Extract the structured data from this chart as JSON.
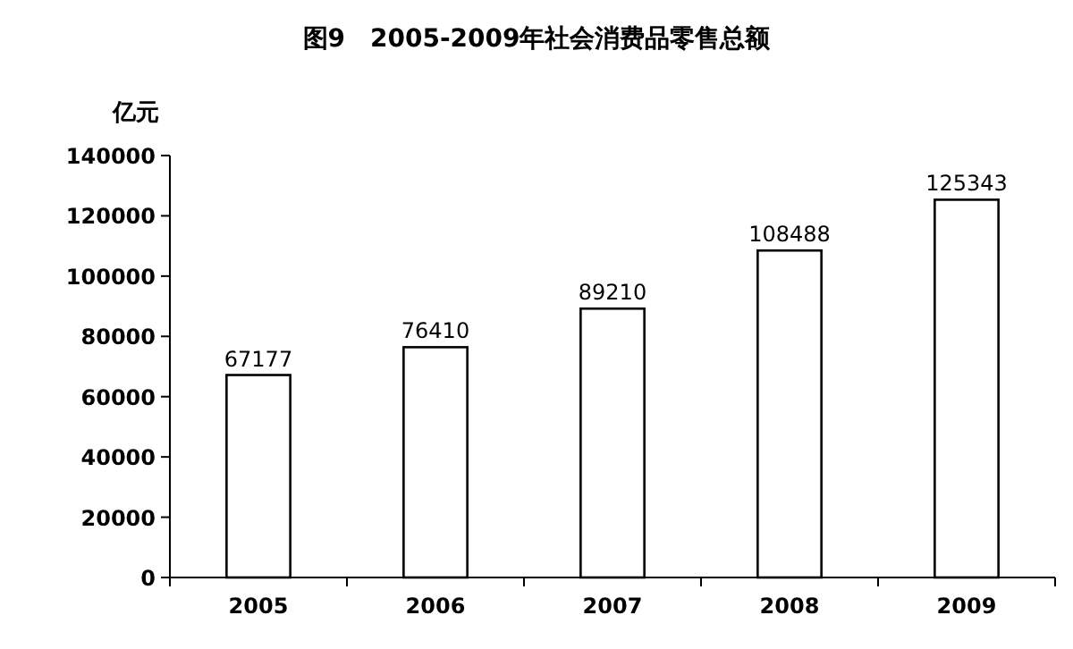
{
  "chart_data": {
    "type": "bar",
    "title": "图9　2005-2009年社会消费品零售总额",
    "ylabel": "亿元",
    "categories": [
      "2005",
      "2006",
      "2007",
      "2008",
      "2009"
    ],
    "values": [
      67177,
      76410,
      89210,
      108488,
      125343
    ],
    "color": "#ffffff",
    "ylim": [
      0,
      140000
    ],
    "yticks": [
      0,
      20000,
      40000,
      60000,
      80000,
      100000,
      120000,
      140000
    ],
    "data_labels": true
  }
}
